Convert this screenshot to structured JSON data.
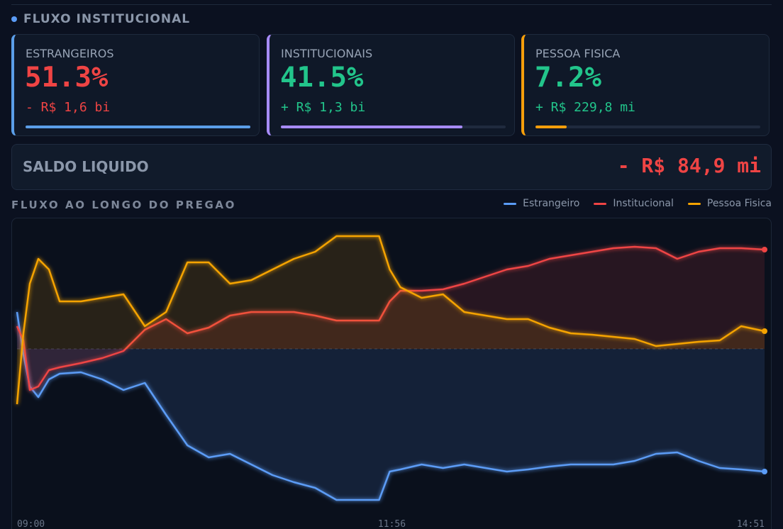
{
  "header": {
    "title": "FLUXO INSTITUCIONAL"
  },
  "cards": [
    {
      "label": "ESTRANGEIROS",
      "value": 51.3,
      "value_label": "51.3%",
      "amount": "- R$ 1,6 bi"
    },
    {
      "label": "INSTITUCIONAIS",
      "value": 41.5,
      "value_label": "41.5%",
      "amount": "+ R$ 1,3 bi"
    },
    {
      "label": "PESSOA FISICA",
      "value": 7.2,
      "value_label": "7.2%",
      "amount": "+ R$ 229,8 mi"
    }
  ],
  "saldo": {
    "label": "SALDO LIQUIDO",
    "value": "- R$ 84,9 mi"
  },
  "chart_data": {
    "type": "line",
    "title": "FLUXO AO LONGO DO PREGAO",
    "legend": "top-right",
    "area": true,
    "x": [
      540,
      543,
      546,
      550,
      555,
      560,
      570,
      580,
      590,
      600,
      610,
      620,
      630,
      640,
      650,
      660,
      670,
      680,
      690,
      700,
      710,
      715,
      720,
      730,
      740,
      750,
      760,
      770,
      780,
      790,
      800,
      810,
      820,
      830,
      840,
      850,
      860,
      870,
      880,
      891
    ],
    "xlim": [
      540,
      891
    ],
    "xticks": [
      {
        "value": 540,
        "label": "09:00"
      },
      {
        "value": 716,
        "label": "11:56"
      },
      {
        "value": 891,
        "label": "14:51"
      }
    ],
    "ylim": [
      -230,
      170
    ],
    "series": [
      {
        "name": "Estrangeiro",
        "color": "#5b9cf6",
        "values": [
          52,
          -8,
          -53,
          -68,
          -43,
          -35,
          -33,
          -43,
          -58,
          -48,
          -93,
          -136,
          -153,
          -148,
          -163,
          -178,
          -188,
          -196,
          -213,
          -213,
          -213,
          -173,
          -170,
          -163,
          -168,
          -163,
          -168,
          -173,
          -170,
          -166,
          -163,
          -163,
          -163,
          -158,
          -148,
          -146,
          -158,
          -168,
          -170,
          -173
        ]
      },
      {
        "name": "Institucional",
        "color": "#ef4444",
        "values": [
          32,
          12,
          -58,
          -53,
          -30,
          -26,
          -20,
          -13,
          -3,
          27,
          42,
          22,
          30,
          47,
          52,
          52,
          52,
          47,
          40,
          40,
          40,
          67,
          82,
          82,
          84,
          92,
          102,
          112,
          117,
          127,
          132,
          137,
          142,
          144,
          142,
          127,
          137,
          142,
          142,
          140
        ]
      },
      {
        "name": "Pessoa Fisica",
        "color": "#f5a300",
        "values": [
          -78,
          22,
          92,
          127,
          112,
          67,
          67,
          72,
          77,
          32,
          52,
          122,
          122,
          92,
          97,
          112,
          127,
          137,
          159,
          159,
          159,
          112,
          87,
          72,
          77,
          52,
          47,
          42,
          42,
          30,
          22,
          20,
          17,
          14,
          4,
          7,
          10,
          12,
          32,
          25
        ]
      }
    ]
  }
}
